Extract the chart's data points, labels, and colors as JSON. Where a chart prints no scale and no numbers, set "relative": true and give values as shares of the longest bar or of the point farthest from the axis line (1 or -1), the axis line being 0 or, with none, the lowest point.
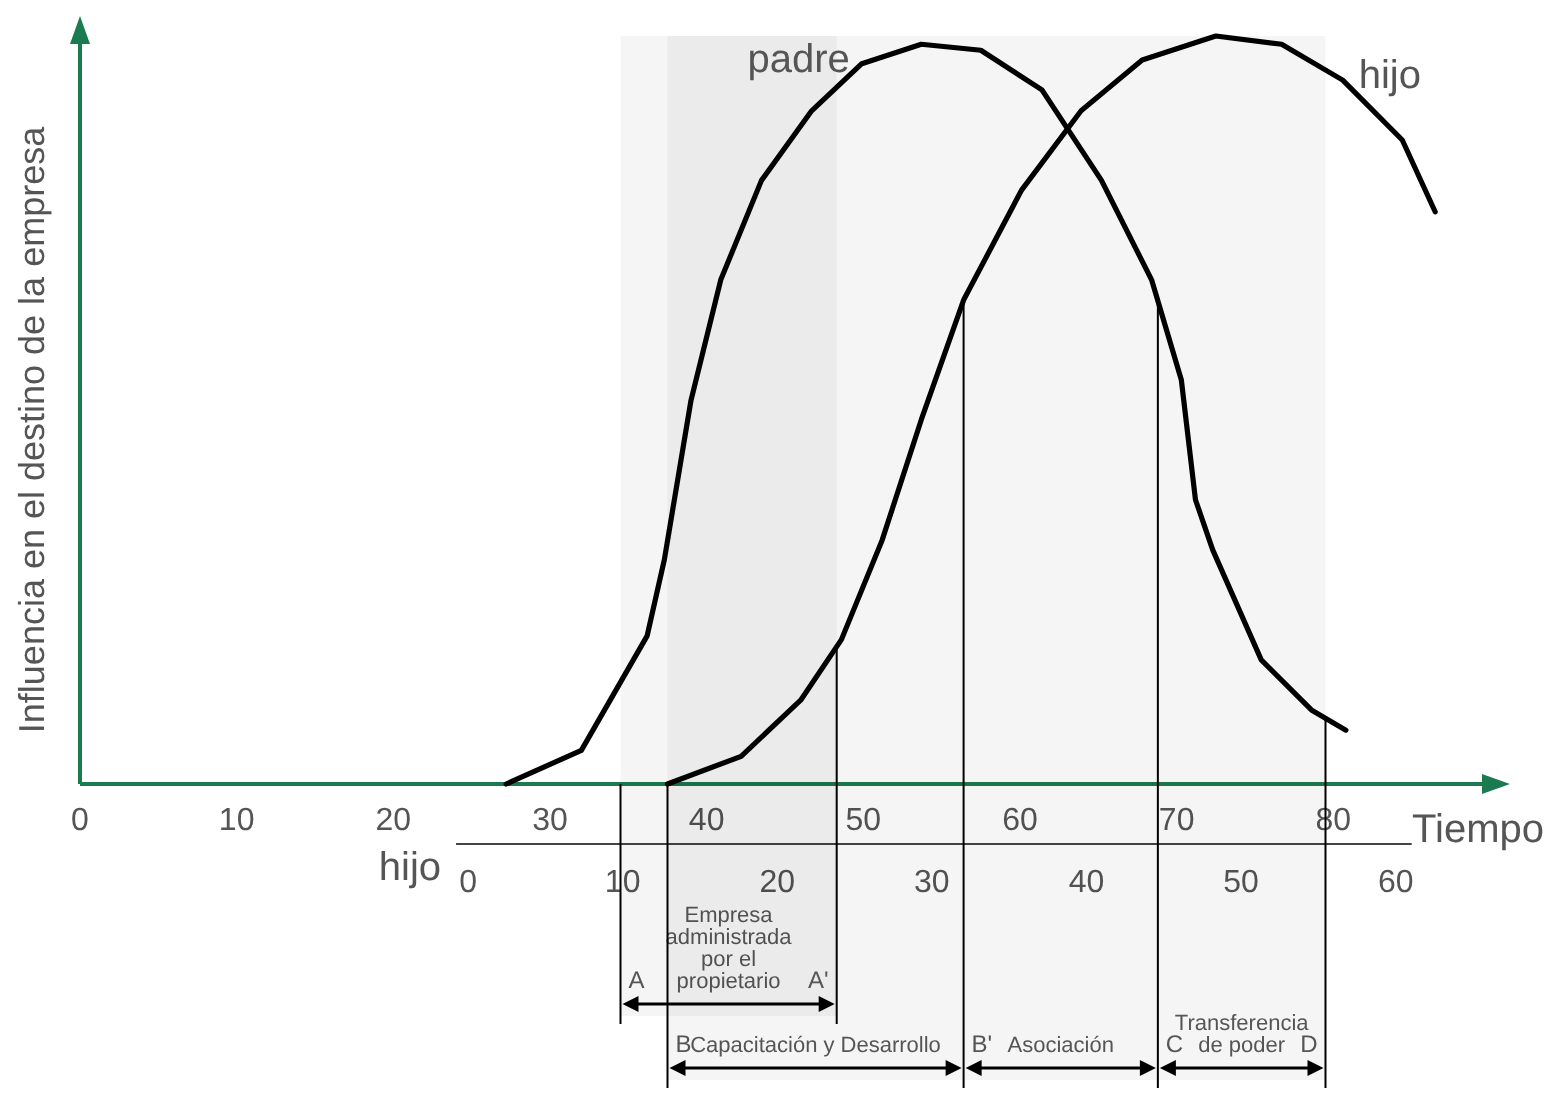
{
  "chart_data": {
    "type": "line",
    "relative": true,
    "xlabel": "Tiempo",
    "ylabel": "Influencia en el destino de la empresa",
    "x2label": "hijo",
    "xlim": [
      0,
      90
    ],
    "xticks": [
      0,
      10,
      20,
      30,
      40,
      50,
      60,
      70,
      80
    ],
    "x2lim": [
      -25.1,
      66.1
    ],
    "x2ticks": [
      0,
      10,
      20,
      30,
      40,
      50,
      60
    ],
    "series": [
      {
        "name": "padre",
        "color": "#000000",
        "x": [
          27.2,
          32.0,
          36.2,
          37.3,
          39.0,
          40.9,
          43.5,
          46.7,
          49.9,
          53.7,
          57.5,
          61.4,
          65.2,
          68.4,
          70.3,
          71.2,
          72.3,
          75.4,
          78.6,
          80.8
        ],
        "values": [
          0,
          0.045,
          0.198,
          0.3,
          0.513,
          0.674,
          0.807,
          0.9,
          0.963,
          0.989,
          0.981,
          0.928,
          0.807,
          0.674,
          0.54,
          0.38,
          0.313,
          0.166,
          0.099,
          0.072
        ]
      },
      {
        "name": "hijo",
        "color": "#000000",
        "x": [
          37.5,
          42.2,
          46.0,
          48.6,
          51.2,
          53.7,
          56.4,
          60.1,
          63.9,
          67.8,
          72.5,
          76.7,
          80.6,
          84.4,
          86.5
        ],
        "values": [
          0,
          0.037,
          0.112,
          0.193,
          0.326,
          0.487,
          0.647,
          0.794,
          0.9,
          0.968,
          1,
          0.989,
          0.941,
          0.861,
          0.765
        ]
      }
    ],
    "bands": [
      {
        "axis": "x",
        "from": 34.5,
        "to": 48.3,
        "label": "Empresa administrada por el propietario"
      },
      {
        "axis": "x",
        "from": 37.5,
        "to": 56.4,
        "label": "Capacitación y Desarrollo"
      },
      {
        "axis": "x",
        "from": 56.4,
        "to": 68.8,
        "label": "Asociación"
      },
      {
        "axis": "x",
        "from": 68.8,
        "to": 79.5,
        "label": "Transferencia de poder"
      }
    ],
    "ref_lines": [
      {
        "axis": "x",
        "value": 34.5,
        "label": "A"
      },
      {
        "axis": "x",
        "value": 48.3,
        "label": "A'"
      },
      {
        "axis": "x",
        "value": 37.5,
        "label": "B"
      },
      {
        "axis": "x",
        "value": 56.4,
        "label": "B'"
      },
      {
        "axis": "x",
        "value": 68.8,
        "label": "C"
      },
      {
        "axis": "x",
        "value": 79.5,
        "label": "D"
      }
    ]
  }
}
